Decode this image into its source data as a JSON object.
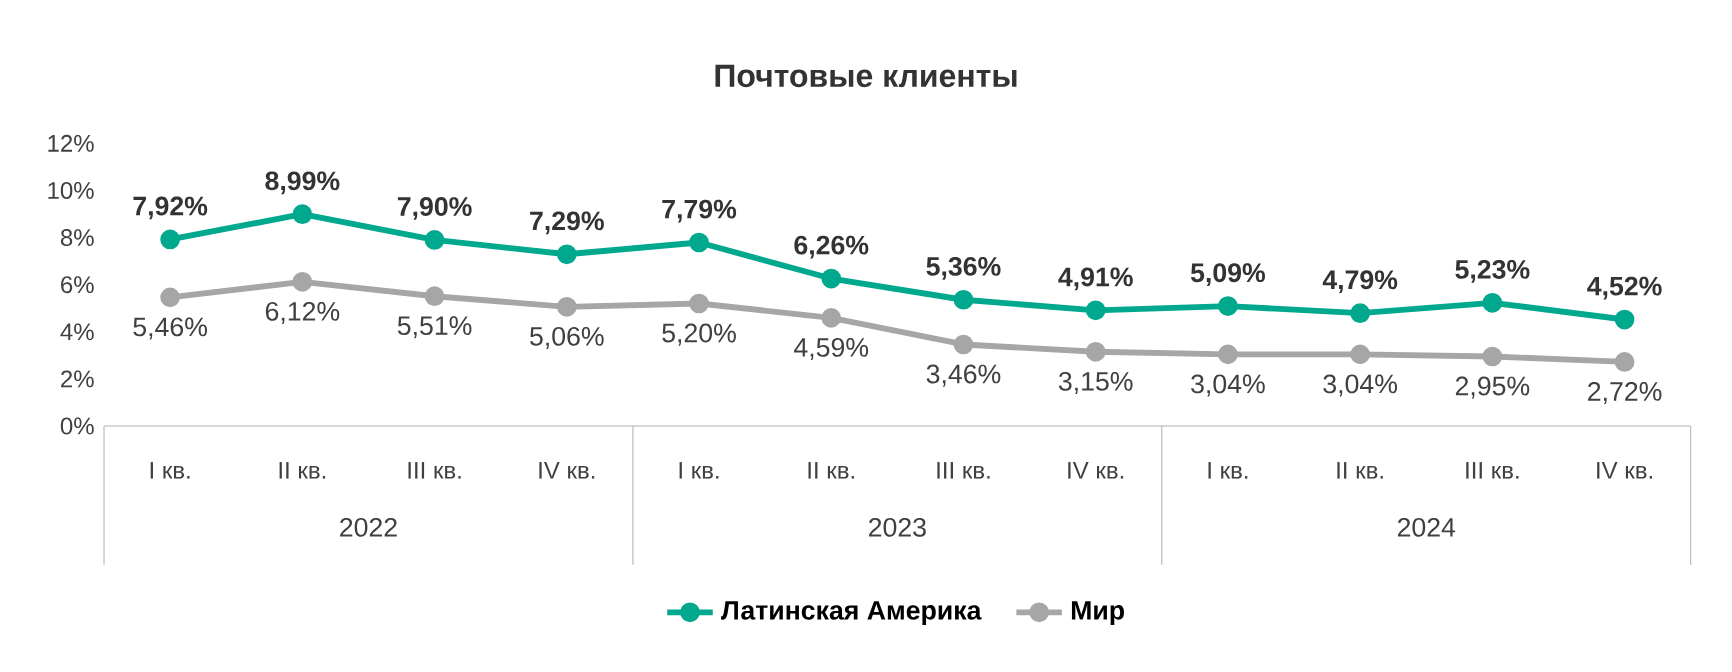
{
  "chart_data": {
    "type": "line",
    "title": "Почтовые клиенты",
    "categories": [
      "I кв.",
      "II кв.",
      "III кв.",
      "IV кв.",
      "I кв.",
      "II кв.",
      "III кв.",
      "IV кв.",
      "I кв.",
      "II кв.",
      "III кв.",
      "IV кв."
    ],
    "annotations": [
      "2022",
      "2023",
      "2024"
    ],
    "series": [
      {
        "name": "Латинская Америка",
        "color": "#00a88e",
        "values": [
          7.92,
          8.99,
          7.9,
          7.29,
          7.79,
          6.26,
          5.36,
          4.91,
          5.09,
          4.79,
          5.23,
          4.52
        ],
        "value_labels": [
          "7,92%",
          "8,99%",
          "7,90%",
          "7,29%",
          "7,79%",
          "6,26%",
          "5,36%",
          "4,91%",
          "5,09%",
          "4,79%",
          "5,23%",
          "4,52%"
        ]
      },
      {
        "name": "Мир",
        "color": "#a6a6a6",
        "values": [
          5.46,
          6.12,
          5.51,
          5.06,
          5.2,
          4.59,
          3.46,
          3.15,
          3.04,
          3.04,
          2.95,
          2.72
        ],
        "value_labels": [
          "5,46%",
          "6,12%",
          "5,51%",
          "5,06%",
          "5,20%",
          "4,59%",
          "3,46%",
          "3,15%",
          "3,04%",
          "3,04%",
          "2,95%",
          "2,72%"
        ]
      }
    ],
    "ylim": [
      0,
      12
    ],
    "yticks": [
      {
        "value": 0,
        "label": "0%"
      },
      {
        "value": 2,
        "label": "2%"
      },
      {
        "value": 4,
        "label": "4%"
      },
      {
        "value": 6,
        "label": "6%"
      },
      {
        "value": 8,
        "label": "8%"
      },
      {
        "value": 10,
        "label": "10%"
      },
      {
        "value": 12,
        "label": "12%"
      }
    ],
    "legend": "bottom",
    "marker": "circle",
    "line_style": "solid"
  }
}
